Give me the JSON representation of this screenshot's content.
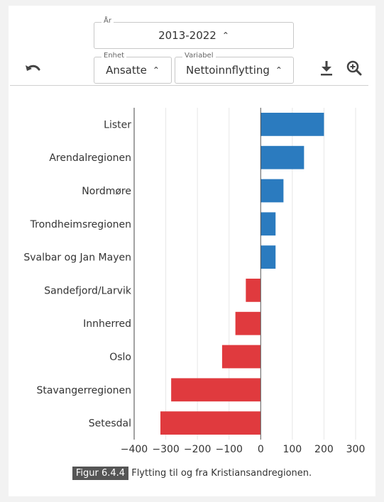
{
  "controls": {
    "year": {
      "label": "År",
      "value": "2013-2022"
    },
    "unit": {
      "label": "Enhet",
      "value": "Ansatte"
    },
    "variable": {
      "label": "Variabel",
      "value": "Nettoinnflytting"
    },
    "icons": {
      "undo": "undo-icon",
      "download": "download-icon",
      "zoom": "zoom-in-icon"
    }
  },
  "chart_data": {
    "type": "bar",
    "orientation": "horizontal",
    "categories": [
      "Lister",
      "Arendalregionen",
      "Nordmøre",
      "Trondheimsregionen",
      "Svalbar og Jan Mayen",
      "Sandefjord/Larvik",
      "Innherred",
      "Oslo",
      "Stavangerregionen",
      "Setesdal"
    ],
    "values": [
      200,
      137,
      72,
      47,
      47,
      -47,
      -80,
      -122,
      -283,
      -317
    ],
    "xlim": [
      -400,
      300
    ],
    "xticks": [
      -400,
      -300,
      -200,
      -100,
      0,
      100,
      200,
      300
    ],
    "xtick_labels": [
      "−400",
      "−300",
      "−200",
      "−100",
      "0",
      "100",
      "200",
      "300"
    ],
    "colors": {
      "positive": "#2b7bbf",
      "negative": "#e03a3e"
    },
    "grid": true
  },
  "caption": {
    "tag": "Figur 6.4.4",
    "text": "Flytting til og fra Kristiansandregionen."
  }
}
